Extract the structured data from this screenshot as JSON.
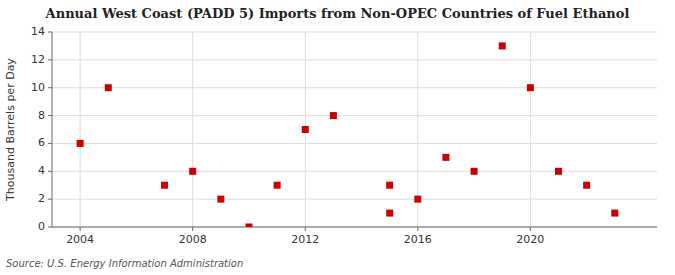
{
  "chart_data": {
    "type": "scatter",
    "title": "Annual West Coast (PADD 5) Imports from Non-OPEC Countries of Fuel Ethanol",
    "ylabel": "Thousand Barrels per Day",
    "source": "Source: U.S. Energy Information Administration",
    "x": [
      2004,
      2005,
      2007,
      2008,
      2009,
      2010,
      2011,
      2012,
      2013,
      2015,
      2015,
      2016,
      2017,
      2018,
      2019,
      2020,
      2021,
      2022,
      2023
    ],
    "values": [
      6,
      10,
      3,
      4,
      2,
      0,
      3,
      7,
      8,
      1,
      3,
      2,
      5,
      4,
      13,
      10,
      4,
      3,
      1
    ],
    "color": "#cc0000",
    "marker": "square",
    "xlim": [
      2003.0,
      2024.5
    ],
    "ylim": [
      0,
      14
    ],
    "xticks": [
      2004,
      2008,
      2012,
      2016,
      2020
    ],
    "yticks": [
      0,
      2,
      4,
      6,
      8,
      10,
      12,
      14
    ],
    "grid": true
  }
}
